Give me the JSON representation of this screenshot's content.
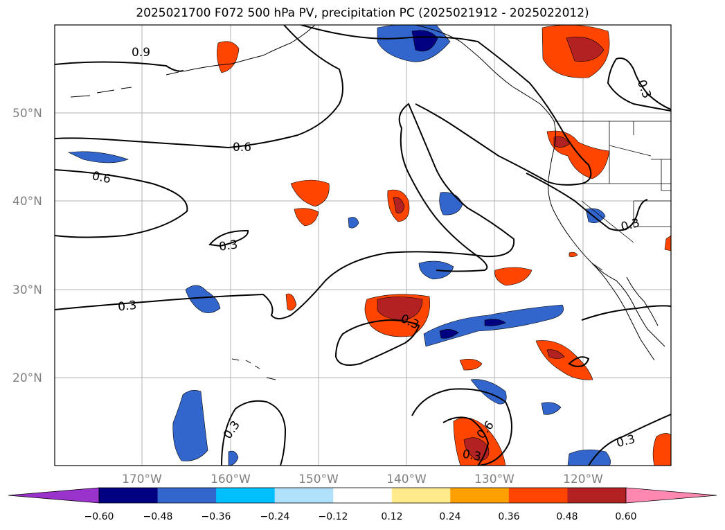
{
  "title": "2025021700 F072 500 hPa PV, precipitation PC (2025021912 - 2025022012)",
  "map": {
    "lat_labels": [
      "50°N",
      "40°N",
      "30°N",
      "20°N"
    ],
    "lon_labels": [
      "170°W",
      "160°W",
      "150°W",
      "140°W",
      "130°W",
      "120°W"
    ],
    "contour_labels": [
      "0.9",
      "0.6",
      "0.6",
      "0.3",
      "0.3",
      "0.3",
      "0.3",
      "0.3",
      "0.6",
      "0.3",
      "0.3",
      "0.3"
    ]
  },
  "colorbar": {
    "labels": [
      "−0.60",
      "−0.48",
      "−0.36",
      "−0.24",
      "−0.12",
      "0.12",
      "0.24",
      "0.36",
      "0.48",
      "0.60"
    ],
    "colors": {
      "under": "#9933cc",
      "bins": [
        "#000080",
        "#3366cc",
        "#00bfff",
        "#b0e0fa",
        "#ffffff",
        "#ffeb8c",
        "#ff9f00",
        "#ff4500",
        "#b22222"
      ],
      "over": "#ff88b0"
    }
  }
}
